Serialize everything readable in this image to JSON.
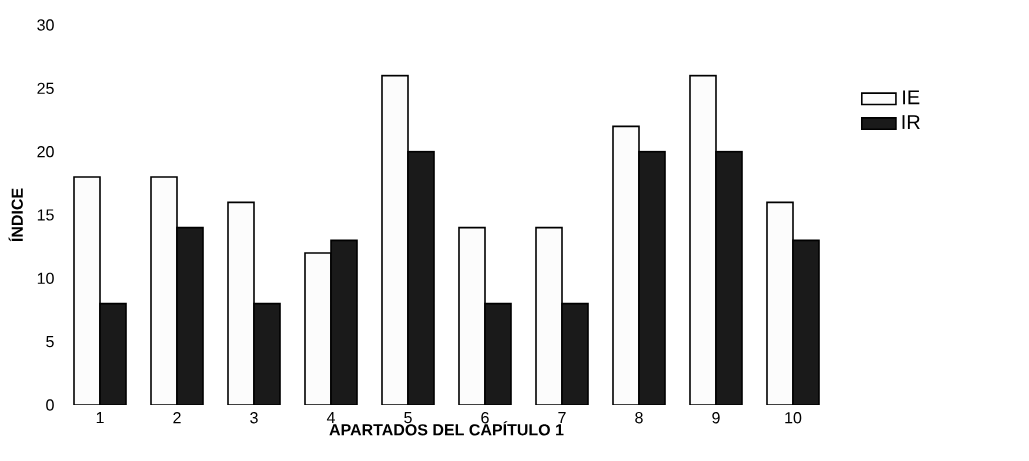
{
  "chart_data": {
    "type": "bar",
    "xlabel": "APARTADOS DEL CAPÍTULO 1",
    "ylabel": "ÍNDICE",
    "categories": [
      "1",
      "2",
      "3",
      "4",
      "5",
      "6",
      "7",
      "8",
      "9",
      "10"
    ],
    "series": [
      {
        "name": "IE",
        "color": "#fcfcfc",
        "values": [
          18,
          18,
          16,
          12,
          26,
          14,
          14,
          22,
          26,
          16
        ]
      },
      {
        "name": "IR",
        "color": "#1a1a1a",
        "values": [
          8,
          14,
          8,
          13,
          20,
          8,
          8,
          20,
          20,
          13
        ]
      }
    ],
    "ylim": [
      0,
      30
    ],
    "yticks": [
      0,
      5,
      10,
      15,
      20,
      25,
      30
    ],
    "legend": "right",
    "grid": false
  }
}
